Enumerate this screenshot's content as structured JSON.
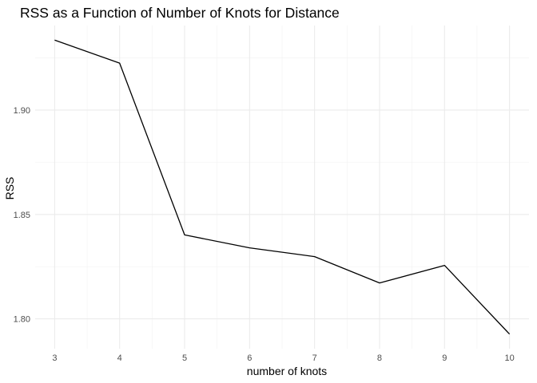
{
  "chart_data": {
    "type": "line",
    "title": "RSS as a Function of Number of Knots for Distance",
    "xlabel": "number of knots",
    "ylabel": "RSS",
    "x": [
      3,
      4,
      5,
      6,
      7,
      8,
      9,
      10
    ],
    "y": [
      1.9335,
      1.9225,
      1.8402,
      1.834,
      1.8298,
      1.8172,
      1.8256,
      1.7927
    ],
    "x_ticks": [
      "3",
      "4",
      "5",
      "6",
      "7",
      "8",
      "9",
      "10"
    ],
    "y_ticks": [
      "1.80",
      "1.85",
      "1.90"
    ],
    "xlim": [
      2.7,
      10.3
    ],
    "ylim": [
      1.7857,
      1.9405
    ],
    "grid": true,
    "line_color": "#000000"
  }
}
